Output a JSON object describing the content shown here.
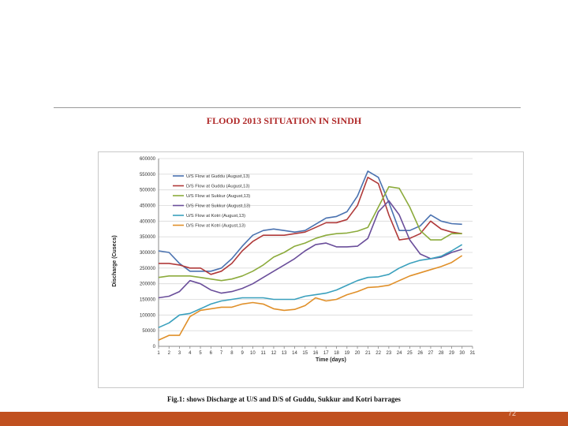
{
  "slide": {
    "title": "FLOOD 2013 SITUATION IN SINDH",
    "caption": "Fig.1: shows Discharge at U/S and D/S of Guddu, Sukkur and Kotri barrages",
    "page_number": "72",
    "colors": {
      "footer": "#c0501f",
      "title": "#b02a2a"
    }
  },
  "chart_data": {
    "type": "line",
    "title": "",
    "xlabel": "Time (days)",
    "ylabel": "Discharge (Cusecs)",
    "xlim": [
      1,
      31
    ],
    "ylim": [
      0,
      600000
    ],
    "grid": true,
    "legend_position": "top-left",
    "x_ticks": [
      1,
      2,
      3,
      4,
      5,
      6,
      7,
      8,
      9,
      10,
      11,
      12,
      13,
      14,
      15,
      16,
      17,
      18,
      19,
      20,
      21,
      22,
      23,
      24,
      25,
      26,
      27,
      28,
      29,
      30,
      31
    ],
    "y_ticks": [
      0,
      50000,
      100000,
      150000,
      200000,
      250000,
      300000,
      350000,
      400000,
      450000,
      500000,
      550000,
      600000
    ],
    "x": [
      1,
      2,
      3,
      4,
      5,
      6,
      7,
      8,
      9,
      10,
      11,
      12,
      13,
      14,
      15,
      16,
      17,
      18,
      19,
      20,
      21,
      22,
      23,
      24,
      25,
      26,
      27,
      28,
      29,
      30
    ],
    "series": [
      {
        "name": "U/S Flow at Guddu (August,13)",
        "color": "#4a72b0",
        "values": [
          305000,
          300000,
          265000,
          240000,
          240000,
          240000,
          250000,
          280000,
          320000,
          355000,
          370000,
          375000,
          370000,
          365000,
          370000,
          390000,
          410000,
          415000,
          430000,
          480000,
          560000,
          540000,
          460000,
          370000,
          370000,
          385000,
          420000,
          400000,
          392000,
          390000
        ]
      },
      {
        "name": "D/S Flow at Guddu (August,13)",
        "color": "#b03a3a",
        "values": [
          265000,
          265000,
          260000,
          250000,
          250000,
          230000,
          240000,
          265000,
          305000,
          335000,
          355000,
          355000,
          355000,
          360000,
          365000,
          380000,
          395000,
          395000,
          405000,
          450000,
          540000,
          520000,
          420000,
          340000,
          345000,
          360000,
          400000,
          375000,
          365000,
          360000
        ]
      },
      {
        "name": "U/S Flow at Sukkur (August,13)",
        "color": "#8cab3c",
        "values": [
          220000,
          225000,
          225000,
          225000,
          220000,
          215000,
          210000,
          215000,
          225000,
          240000,
          260000,
          285000,
          300000,
          320000,
          330000,
          345000,
          355000,
          360000,
          362000,
          368000,
          380000,
          445000,
          510000,
          505000,
          445000,
          370000,
          340000,
          340000,
          360000,
          360000
        ]
      },
      {
        "name": "D/S Flow at Sukkur (August,13)",
        "color": "#6a4e9a",
        "values": [
          155000,
          160000,
          175000,
          210000,
          200000,
          180000,
          170000,
          175000,
          185000,
          200000,
          220000,
          240000,
          260000,
          280000,
          305000,
          325000,
          330000,
          318000,
          318000,
          320000,
          345000,
          430000,
          465000,
          420000,
          340000,
          295000,
          280000,
          285000,
          300000,
          310000
        ]
      },
      {
        "name": "U/S Flow at Kotri (August,13)",
        "color": "#3aa0bd",
        "values": [
          60000,
          75000,
          100000,
          105000,
          120000,
          135000,
          145000,
          150000,
          155000,
          155000,
          155000,
          150000,
          150000,
          150000,
          160000,
          165000,
          170000,
          180000,
          195000,
          210000,
          220000,
          222000,
          230000,
          250000,
          265000,
          275000,
          280000,
          288000,
          305000,
          325000
        ]
      },
      {
        "name": "D/S Flow at Kotri (August,13)",
        "color": "#e0902a",
        "values": [
          20000,
          35000,
          35000,
          95000,
          115000,
          120000,
          125000,
          125000,
          135000,
          140000,
          135000,
          120000,
          115000,
          118000,
          130000,
          155000,
          145000,
          150000,
          165000,
          175000,
          188000,
          190000,
          195000,
          210000,
          225000,
          235000,
          245000,
          255000,
          268000,
          290000
        ]
      }
    ]
  }
}
